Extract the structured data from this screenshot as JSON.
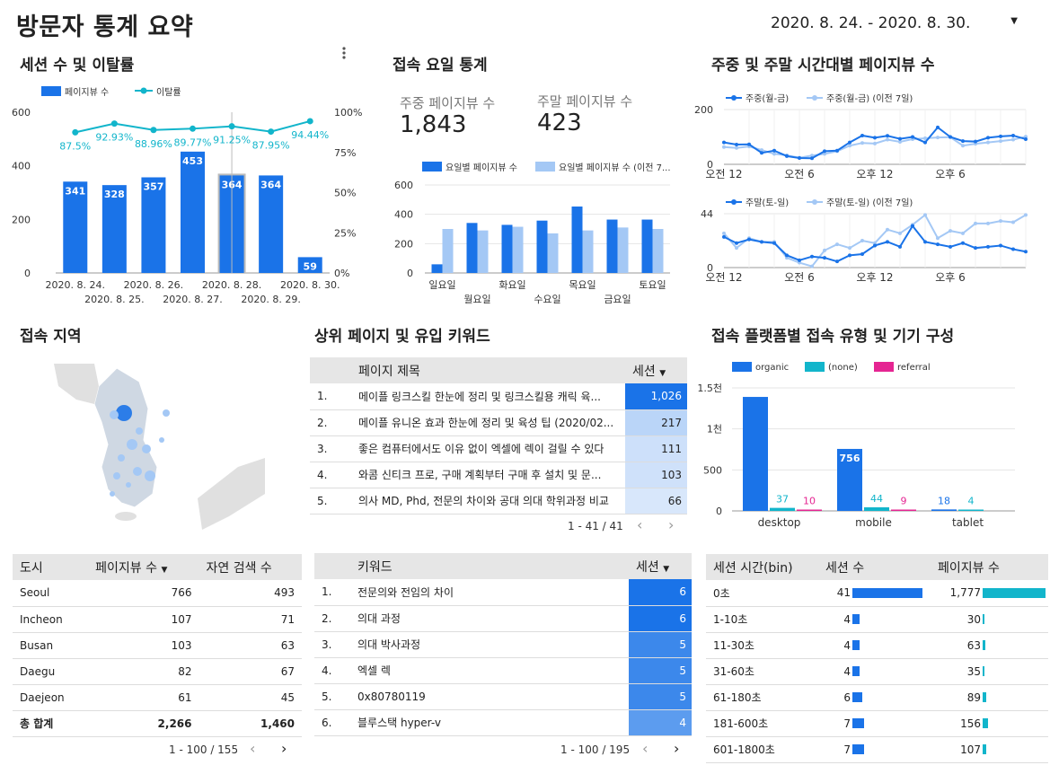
{
  "page": {
    "title": "방문자 통계 요약",
    "date_range": "2020. 8. 24. - 2020. 8. 30."
  },
  "colors": {
    "primary": "#1a73e8",
    "light": "#a4c8f5",
    "teal": "#12b5cb",
    "pink": "#e52592",
    "header_bg": "#e6e6e6"
  },
  "icons": {
    "date_dropdown": "caret-down-icon",
    "more_menu": "vertical-dots-icon"
  },
  "sessions": {
    "title": "세션 수 및 이탈률",
    "chart_data": {
      "type": "bar",
      "categories": [
        "2020. 8. 24.",
        "2020. 8. 25.",
        "2020. 8. 26.",
        "2020. 8. 27.",
        "2020. 8. 28.",
        "2020. 8. 29.",
        "2020. 8. 30."
      ],
      "series": [
        {
          "name": "페이지뷰 수",
          "type": "bar",
          "values": [
            341,
            328,
            357,
            453,
            364,
            364,
            59
          ]
        },
        {
          "name": "이탈률",
          "type": "line",
          "axis": "right",
          "values": [
            87.5,
            92.93,
            88.96,
            89.77,
            91.25,
            87.95,
            94.44
          ],
          "labels": [
            "87.5%",
            "92.93%",
            "88.96%",
            "89.77%",
            "91.25%",
            "87.95%",
            "94.44%"
          ]
        }
      ],
      "yticks": [
        "0",
        "200",
        "400",
        "600"
      ],
      "y2ticks": [
        "0%",
        "25%",
        "50%",
        "75%",
        "100%"
      ],
      "ylim": [
        0,
        600
      ],
      "y2lim": [
        0,
        100
      ],
      "highlight_index": 4
    }
  },
  "weekday": {
    "title": "접속 요일 통계",
    "weekday_label": "주중 페이지뷰 수",
    "weekday_value": "1,843",
    "weekend_label": "주말 페이지뷰 수",
    "weekend_value": "423",
    "chart_data": {
      "type": "bar",
      "categories": [
        "일요일",
        "월요일",
        "화요일",
        "수요일",
        "목요일",
        "금요일",
        "토요일"
      ],
      "series": [
        {
          "name": "요일별 페이지뷰 수",
          "values": [
            59,
            341,
            328,
            357,
            453,
            364,
            364
          ]
        },
        {
          "name": "요일별 페이지뷰 수 (이전 7...",
          "values": [
            300,
            290,
            315,
            270,
            290,
            310,
            300
          ]
        }
      ],
      "yticks": [
        "0",
        "200",
        "400",
        "600"
      ],
      "ylim": [
        0,
        600
      ]
    }
  },
  "hourly": {
    "title": "주중 및 주말 시간대별 페이지뷰 수",
    "xticks": [
      "오전 12",
      "오전 6",
      "오후 12",
      "오후 6"
    ],
    "weekday_chart": {
      "type": "line",
      "series": [
        {
          "name": "주중(월-금)",
          "values": [
            80,
            72,
            73,
            42,
            50,
            30,
            23,
            22,
            48,
            50,
            80,
            105,
            97,
            104,
            93,
            100,
            80,
            135,
            100,
            85,
            83,
            97,
            102,
            105,
            92
          ]
        },
        {
          "name": "주중(월-금) (이전 7일)",
          "values": [
            63,
            60,
            65,
            52,
            38,
            33,
            24,
            32,
            38,
            48,
            68,
            78,
            76,
            90,
            82,
            92,
            95,
            98,
            99,
            68,
            75,
            80,
            85,
            90,
            101
          ]
        }
      ],
      "yticks": [
        "0",
        "200"
      ],
      "ylim": [
        0,
        200
      ]
    },
    "weekend_chart": {
      "type": "line",
      "series": [
        {
          "name": "주말(토-일)",
          "values": [
            25,
            20,
            23,
            21,
            20,
            10,
            6,
            9,
            8,
            5,
            10,
            11,
            18,
            21,
            17,
            34,
            21,
            19,
            17,
            20,
            16,
            17,
            18,
            15,
            13
          ]
        },
        {
          "name": "주말(토-일) (이전 7일)",
          "values": [
            28,
            16,
            24,
            21,
            21,
            8,
            4,
            1,
            14,
            19,
            16,
            22,
            20,
            31,
            28,
            35,
            43,
            24,
            30,
            28,
            36,
            36,
            38,
            37,
            43
          ]
        }
      ],
      "yticks": [
        "0",
        "44"
      ],
      "ylim": [
        0,
        44
      ]
    }
  },
  "region": {
    "title": "접속 지역",
    "columns": [
      "도시",
      "페이지뷰 수",
      "자연 검색 수"
    ],
    "rows": [
      [
        "Seoul",
        "766",
        "493"
      ],
      [
        "Incheon",
        "107",
        "71"
      ],
      [
        "Busan",
        "103",
        "63"
      ],
      [
        "Daegu",
        "82",
        "67"
      ],
      [
        "Daejeon",
        "61",
        "45"
      ]
    ],
    "total": [
      "총 합계",
      "2,266",
      "1,460"
    ],
    "pager": "1 - 100 / 155"
  },
  "toppages": {
    "title": "상위 페이지 및 유입 키워드",
    "columns": [
      "페이지 제목",
      "세션"
    ],
    "rows": [
      {
        "idx": "1.",
        "title": "메이플 링크스킬 한눈에 정리 및 링크스킬용 캐릭 육...",
        "value": "1,026",
        "level": 1.0
      },
      {
        "idx": "2.",
        "title": "메이플 유니온 효과 한눈에 정리 및 육성 팁 (2020/02...",
        "value": "217",
        "level": 0.21
      },
      {
        "idx": "3.",
        "title": "좋은 컴퓨터에서도 이유 없이 엑셀에 렉이 걸릴 수 있다",
        "value": "111",
        "level": 0.11
      },
      {
        "idx": "4.",
        "title": "와콤 신티크 프로, 구매 계획부터 구매 후 설치 및 문...",
        "value": "103",
        "level": 0.1
      },
      {
        "idx": "5.",
        "title": "의사 MD, Phd, 전문의 차이와 공대 의대 학위과정 비교",
        "value": "66",
        "level": 0.06
      }
    ],
    "pager": "1 - 41 / 41"
  },
  "keywords": {
    "columns": [
      "키워드",
      "세션"
    ],
    "rows": [
      {
        "idx": "1.",
        "title": "전문의와 전임의 차이",
        "value": "6",
        "level": 1.0
      },
      {
        "idx": "2.",
        "title": "의대 과정",
        "value": "6",
        "level": 1.0
      },
      {
        "idx": "3.",
        "title": "의대 박사과정",
        "value": "5",
        "level": 0.83
      },
      {
        "idx": "4.",
        "title": "엑셀 렉",
        "value": "5",
        "level": 0.83
      },
      {
        "idx": "5.",
        "title": "0x80780119",
        "value": "5",
        "level": 0.83
      },
      {
        "idx": "6.",
        "title": "블루스택 hyper-v",
        "value": "4",
        "level": 0.67
      }
    ],
    "pager": "1 - 100 / 195"
  },
  "platform": {
    "title": "접속 플랫폼별 접속 유형 및 기기 구성",
    "chart_data": {
      "type": "bar",
      "categories": [
        "desktop",
        "mobile",
        "tablet"
      ],
      "series": [
        {
          "name": "organic",
          "values": [
            1390,
            756,
            18
          ]
        },
        {
          "name": "(none)",
          "values": [
            37,
            44,
            4
          ]
        },
        {
          "name": "referral",
          "values": [
            10,
            9,
            0
          ]
        }
      ],
      "labels": [
        [
          "",
          "37",
          "10"
        ],
        [
          "756",
          "44",
          "9"
        ],
        [
          "18",
          "4",
          ""
        ]
      ],
      "yticks": [
        "0",
        "500",
        "1천",
        "1.5천"
      ],
      "ylim": [
        0,
        1500
      ]
    }
  },
  "duration": {
    "columns": [
      "세션 시간(bin)",
      "세션 수",
      "페이지뷰 수"
    ],
    "rows": [
      {
        "bin": "0초",
        "sessions": "41",
        "s": 41,
        "pv": "1,777",
        "p": 1777
      },
      {
        "bin": "1-10초",
        "sessions": "4",
        "s": 4,
        "pv": "30",
        "p": 30
      },
      {
        "bin": "11-30초",
        "sessions": "4",
        "s": 4,
        "pv": "63",
        "p": 63
      },
      {
        "bin": "31-60초",
        "sessions": "4",
        "s": 4,
        "pv": "35",
        "p": 35
      },
      {
        "bin": "61-180초",
        "sessions": "6",
        "s": 6,
        "pv": "89",
        "p": 89
      },
      {
        "bin": "181-600초",
        "sessions": "7",
        "s": 7,
        "pv": "156",
        "p": 156
      },
      {
        "bin": "601-1800초",
        "sessions": "7",
        "s": 7,
        "pv": "107",
        "p": 107
      }
    ]
  }
}
